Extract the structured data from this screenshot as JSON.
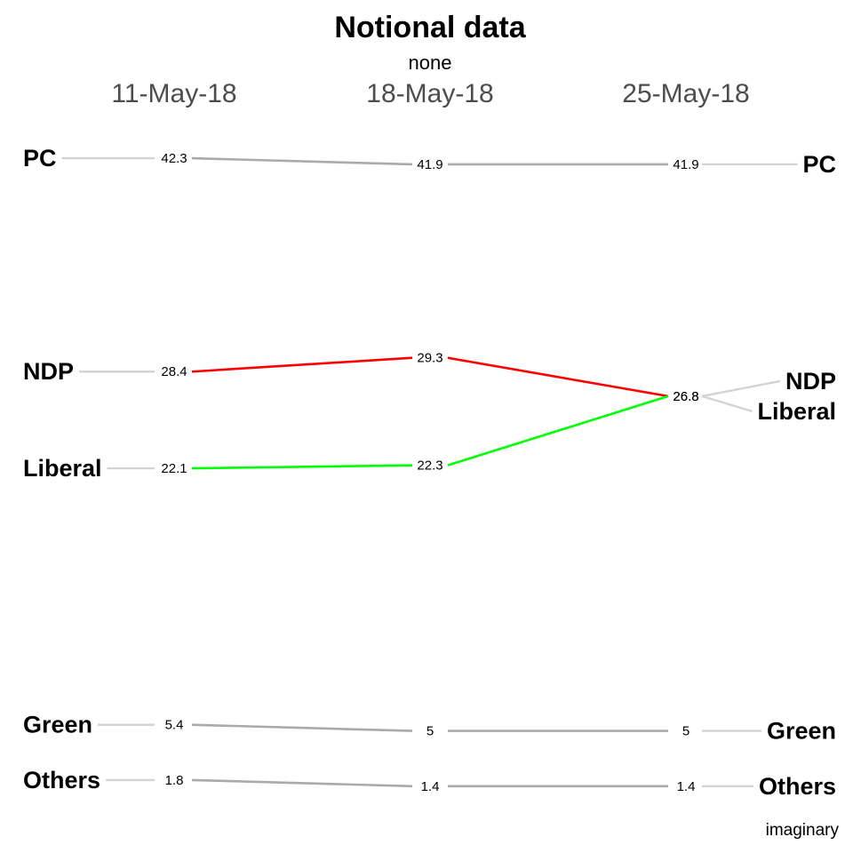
{
  "chart_data": {
    "type": "line",
    "title": "Notional data",
    "subtitle": "none",
    "caption": "imaginary",
    "x": [
      "11-May-18",
      "18-May-18",
      "25-May-18"
    ],
    "series": [
      {
        "name": "PC",
        "values": [
          42.3,
          41.9,
          41.9
        ],
        "labels": [
          "42.3",
          "41.9",
          "41.9"
        ],
        "color": "#aaaaaa"
      },
      {
        "name": "NDP",
        "values": [
          28.4,
          29.3,
          26.8
        ],
        "labels": [
          "28.4",
          "29.3",
          "26.8"
        ],
        "color": "#ff0000"
      },
      {
        "name": "Liberal",
        "values": [
          22.1,
          22.3,
          26.8
        ],
        "labels": [
          "22.1",
          "22.3",
          "26.8"
        ],
        "color": "#00ff00"
      },
      {
        "name": "Green",
        "values": [
          5.4,
          5,
          5
        ],
        "labels": [
          "5.4",
          "5",
          "5"
        ],
        "color": "#aaaaaa"
      },
      {
        "name": "Others",
        "values": [
          1.8,
          1.4,
          1.4
        ],
        "labels": [
          "1.8",
          "1.4",
          "1.4"
        ],
        "color": "#aaaaaa"
      }
    ],
    "connector_color": "#d3d3d3",
    "grid": false,
    "legend": "none"
  }
}
